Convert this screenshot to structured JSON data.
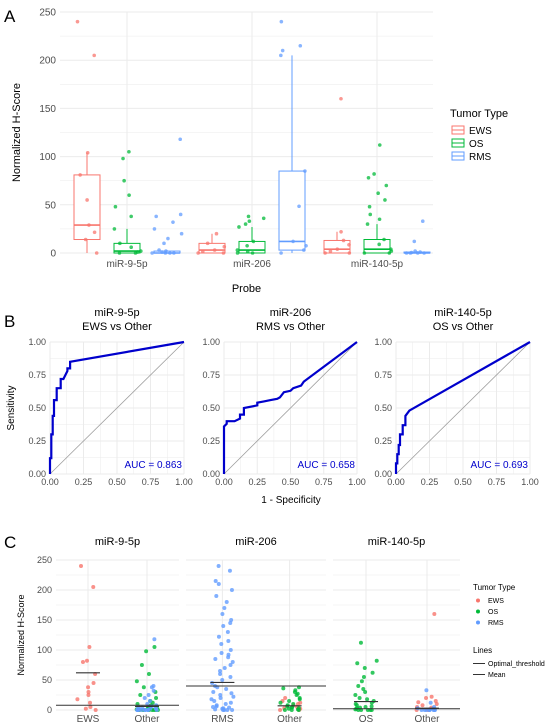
{
  "colors": {
    "EWS": "#F8766D",
    "OS": "#00BA38",
    "RMS": "#619CFF",
    "roc": "#0000CC",
    "auc": "#0000CC",
    "grid": "#EBEBEB",
    "diag": "#9E9E9E",
    "threshold": "#333333"
  },
  "chart_data": [
    {
      "panel_label": "A",
      "type": "box",
      "xlabel": "Probe",
      "ylabel": "Normalized H-Score",
      "ylim": [
        0,
        250
      ],
      "yticks": [
        "0",
        "50",
        "100",
        "150",
        "200",
        "250"
      ],
      "categories": [
        "miR-9-5p",
        "miR-206",
        "miR-140-5p"
      ],
      "legend": {
        "title": "Tumor Type",
        "entries": [
          "EWS",
          "OS",
          "RMS"
        ],
        "placement": "right"
      },
      "boxes": {
        "miR-9-5p": {
          "EWS": {
            "q1": 14,
            "median": 29,
            "q3": 81,
            "lower": 0,
            "upper": 104,
            "outliers": [
              240,
              205
            ]
          },
          "OS": {
            "q1": 0,
            "median": 2,
            "q3": 10,
            "lower": 0,
            "upper": 25,
            "outliers": [
              105,
              98,
              75,
              60,
              48,
              38
            ]
          },
          "RMS": {
            "q1": 0,
            "median": 0,
            "q3": 2,
            "lower": 0,
            "upper": 3,
            "outliers": [
              118,
              40,
              38,
              32,
              25,
              20,
              15,
              10
            ]
          }
        },
        "miR-206": {
          "EWS": {
            "q1": 0,
            "median": 3,
            "q3": 10,
            "lower": 0,
            "upper": 20,
            "outliers": []
          },
          "OS": {
            "q1": 0,
            "median": 3,
            "q3": 12,
            "lower": 0,
            "upper": 27,
            "outliers": [
              38,
              36,
              33,
              30
            ]
          },
          "RMS": {
            "q1": 3,
            "median": 12,
            "q3": 85,
            "lower": 0,
            "upper": 205,
            "outliers": [
              240,
              215,
              210
            ]
          }
        },
        "miR-140-5p": {
          "EWS": {
            "q1": 0,
            "median": 4,
            "q3": 13,
            "lower": 0,
            "upper": 22,
            "outliers": [
              160
            ]
          },
          "OS": {
            "q1": 0,
            "median": 4,
            "q3": 14,
            "lower": 0,
            "upper": 30,
            "outliers": [
              112,
              82,
              78,
              70,
              62,
              55,
              48,
              40,
              35
            ]
          },
          "RMS": {
            "q1": 0,
            "median": 0,
            "q3": 1,
            "lower": 0,
            "upper": 2,
            "outliers": [
              33,
              12
            ]
          }
        }
      }
    },
    {
      "panel_label": "B",
      "type": "line",
      "xlabel": "1 - Specificity",
      "ylabel": "Sensitivity",
      "xlim": [
        0,
        1
      ],
      "ylim": [
        0,
        1
      ],
      "ticks": [
        "0.00",
        "0.25",
        "0.50",
        "0.75",
        "1.00"
      ],
      "panels": [
        {
          "title": "miR-9-5p",
          "subtitle": "EWS vs Other",
          "auc": "AUC = 0.863",
          "x": [
            0,
            0,
            0.01,
            0.01,
            0.02,
            0.02,
            0.03,
            0.03,
            0.05,
            0.05,
            0.08,
            0.08,
            0.1,
            0.13,
            0.13,
            0.15,
            0.15,
            1
          ],
          "y": [
            0,
            0.12,
            0.12,
            0.3,
            0.3,
            0.44,
            0.44,
            0.56,
            0.56,
            0.65,
            0.65,
            0.72,
            0.72,
            0.78,
            0.8,
            0.8,
            0.85,
            1
          ]
        },
        {
          "title": "miR-206",
          "subtitle": "RMS vs Other",
          "auc": "AUC = 0.658",
          "x": [
            0,
            0,
            0.02,
            0.02,
            0.08,
            0.12,
            0.12,
            0.15,
            0.15,
            0.25,
            0.25,
            0.3,
            0.35,
            0.4,
            0.42,
            0.45,
            0.5,
            0.52,
            0.58,
            0.6,
            1
          ],
          "y": [
            0,
            0.36,
            0.38,
            0.4,
            0.4,
            0.42,
            0.45,
            0.45,
            0.5,
            0.52,
            0.54,
            0.55,
            0.56,
            0.57,
            0.58,
            0.62,
            0.63,
            0.65,
            0.67,
            0.7,
            1
          ]
        },
        {
          "title": "miR-140-5p",
          "subtitle": "OS vs Other",
          "auc": "AUC = 0.693",
          "x": [
            0,
            0,
            0.01,
            0.01,
            0.02,
            0.02,
            0.03,
            0.03,
            0.05,
            0.05,
            0.07,
            0.07,
            0.1,
            1
          ],
          "y": [
            0,
            0.08,
            0.08,
            0.15,
            0.15,
            0.22,
            0.22,
            0.3,
            0.3,
            0.37,
            0.37,
            0.44,
            0.48,
            1
          ]
        }
      ]
    },
    {
      "panel_label": "C",
      "type": "scatter",
      "ylabel": "Normalized H-Score",
      "ylim": [
        0,
        250
      ],
      "yticks": [
        "0",
        "50",
        "100",
        "150",
        "200",
        "250"
      ],
      "legend": {
        "title": "Tumor Type",
        "entries": [
          "EWS",
          "OS",
          "RMS"
        ],
        "lines_title": "Lines",
        "lines": [
          "Optimal_threshold",
          "Mean"
        ],
        "placement": "right"
      },
      "panels": [
        {
          "title": "miR-9-5p",
          "categories": [
            "EWS",
            "Other"
          ],
          "threshold": 8,
          "means": [
            62,
            6
          ],
          "groups": [
            {
              "category": "EWS",
              "series": "EWS",
              "values": [
                240,
                205,
                105,
                82,
                80,
                60,
                45,
                38,
                30,
                25,
                18,
                12,
                5,
                2,
                0
              ]
            },
            {
              "category": "Other",
              "series": "OS",
              "values": [
                105,
                98,
                75,
                60,
                48,
                38,
                30,
                25,
                20,
                15,
                12,
                10,
                8,
                6,
                5,
                4,
                3,
                2,
                2,
                1,
                1,
                0,
                0,
                0,
                0,
                0,
                0,
                0
              ]
            },
            {
              "category": "Other",
              "series": "RMS",
              "values": [
                118,
                40,
                38,
                32,
                25,
                20,
                15,
                10,
                8,
                6,
                5,
                4,
                3,
                2,
                2,
                1,
                1,
                0,
                0,
                0,
                0,
                0,
                0,
                0,
                0,
                0
              ]
            }
          ]
        },
        {
          "title": "miR-206",
          "categories": [
            "RMS",
            "Other"
          ],
          "threshold": 40,
          "means": [
            46,
            7
          ],
          "groups": [
            {
              "category": "RMS",
              "series": "RMS",
              "values": [
                240,
                232,
                215,
                210,
                200,
                190,
                180,
                170,
                160,
                150,
                145,
                140,
                130,
                122,
                115,
                110,
                100,
                95,
                92,
                88,
                85,
                80,
                75,
                70,
                65,
                60,
                55,
                50,
                45,
                40,
                38,
                35,
                30,
                28,
                25,
                22,
                20,
                18,
                15,
                12,
                10,
                8,
                6,
                5,
                4,
                3,
                2,
                1,
                0,
                0,
                0,
                0
              ]
            },
            {
              "category": "Other",
              "series": "EWS",
              "values": [
                20,
                15,
                12,
                10,
                8,
                5,
                3,
                2,
                0,
                0
              ]
            },
            {
              "category": "Other",
              "series": "OS",
              "values": [
                38,
                36,
                33,
                30,
                27,
                25,
                20,
                18,
                15,
                12,
                10,
                8,
                6,
                5,
                4,
                3,
                2,
                1,
                0,
                0,
                0
              ]
            }
          ]
        },
        {
          "title": "miR-140-5p",
          "categories": [
            "OS",
            "Other"
          ],
          "threshold": 2,
          "means": [
            14,
            3
          ],
          "groups": [
            {
              "category": "OS",
              "series": "OS",
              "values": [
                112,
                82,
                78,
                70,
                62,
                55,
                48,
                40,
                35,
                30,
                25,
                20,
                18,
                15,
                12,
                10,
                8,
                6,
                5,
                4,
                3,
                2,
                1,
                0,
                0,
                0,
                0,
                0
              ]
            },
            {
              "category": "Other",
              "series": "EWS",
              "values": [
                160,
                22,
                20,
                15,
                13,
                10,
                8,
                5,
                4,
                2,
                0,
                0
              ]
            },
            {
              "category": "Other",
              "series": "RMS",
              "values": [
                33,
                12,
                5,
                3,
                2,
                1,
                0,
                0,
                0,
                0,
                0,
                0,
                0,
                0
              ]
            }
          ]
        }
      ]
    }
  ]
}
